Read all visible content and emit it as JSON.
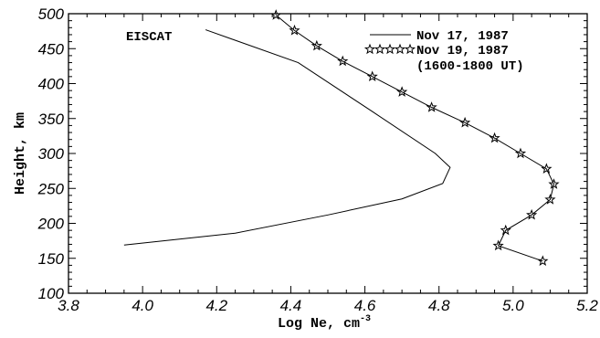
{
  "chart_data": {
    "type": "line",
    "xlabel": "Log Ne, cm",
    "xlabel_superscript": "-3",
    "ylabel": "Height, km",
    "xlim": [
      3.8,
      5.2
    ],
    "ylim": [
      100,
      500
    ],
    "xticks": [
      "3.8",
      "4.0",
      "4.2",
      "4.4",
      "4.6",
      "4.8",
      "5.0",
      "5.2"
    ],
    "yticks": [
      "100",
      "150",
      "200",
      "250",
      "300",
      "350",
      "400",
      "450",
      "500"
    ],
    "annotation": "EISCAT",
    "legend_position": "top-right",
    "legend_note": "(1600-1800 UT)",
    "series": [
      {
        "name": "Nov 17, 1987",
        "marker": "none",
        "color": "#000000",
        "x": [
          3.95,
          4.25,
          4.5,
          4.7,
          4.81,
          4.83,
          4.79,
          4.62,
          4.42,
          4.17
        ],
        "y": [
          169,
          186,
          212,
          235,
          257,
          280,
          300,
          360,
          430,
          477
        ]
      },
      {
        "name": "Nov 19, 1987",
        "marker": "star",
        "color": "#000000",
        "x": [
          5.08,
          4.96,
          4.98,
          5.05,
          5.1,
          5.11,
          5.09,
          5.02,
          4.95,
          4.87,
          4.78,
          4.7,
          4.62,
          4.54,
          4.47,
          4.41,
          4.36
        ],
        "y": [
          146,
          168,
          190,
          212,
          234,
          256,
          278,
          300,
          322,
          344,
          366,
          388,
          410,
          432,
          454,
          476,
          498
        ]
      }
    ]
  }
}
